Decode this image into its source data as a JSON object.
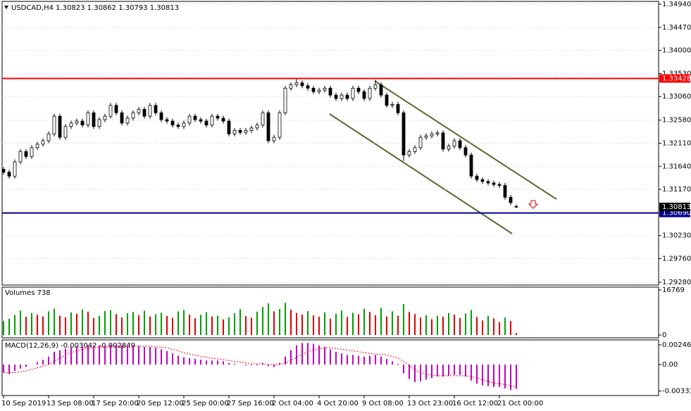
{
  "chart_data": [
    {
      "type": "candlestick",
      "title": "USDCAD,H4  1.30823 1.30862 1.30793 1.30813",
      "color": "#000000",
      "grid": true,
      "categories": [
        "10 Sep 2019",
        null,
        null,
        null,
        null,
        null,
        null,
        null,
        "13 Sep 08:00",
        null,
        null,
        null,
        null,
        null,
        null,
        null,
        "17 Sep 20:00",
        null,
        null,
        null,
        null,
        null,
        null,
        null,
        "20 Sep 12:00",
        null,
        null,
        null,
        null,
        null,
        null,
        null,
        "25 Sep 00:00",
        null,
        null,
        null,
        null,
        null,
        null,
        null,
        "27 Sep 16:00",
        null,
        null,
        null,
        null,
        null,
        null,
        null,
        "2 Oct 04:00",
        null,
        null,
        null,
        null,
        null,
        null,
        null,
        "4 Oct 20:00",
        null,
        null,
        null,
        null,
        null,
        null,
        null,
        "9 Oct 08:00",
        null,
        null,
        null,
        null,
        null,
        null,
        null,
        "13 Oct 23:00",
        null,
        null,
        null,
        null,
        null,
        null,
        null,
        "16 Oct 12:00",
        null,
        null,
        null,
        null,
        null,
        null,
        null,
        "21 Oct 00:00",
        null,
        null,
        null
      ],
      "open": [
        1.3158,
        1.3152,
        1.3144,
        1.3173,
        1.3194,
        1.3184,
        1.3202,
        1.3209,
        1.3216,
        1.323,
        1.3266,
        1.3223,
        1.3245,
        1.3252,
        1.3256,
        1.3248,
        1.3273,
        1.3245,
        1.3259,
        1.3266,
        1.3288,
        1.3273,
        1.3252,
        1.3262,
        1.3273,
        1.328,
        1.3266,
        1.3288,
        1.3273,
        1.3259,
        1.3256,
        1.3248,
        1.3245,
        1.3252,
        1.3266,
        1.3259,
        1.3256,
        1.3248,
        1.3266,
        1.3262,
        1.3256,
        1.323,
        1.3237,
        1.3233,
        1.3237,
        1.3242,
        1.3248,
        1.3273,
        1.3216,
        1.3223,
        1.3273,
        1.3323,
        1.333,
        1.3334,
        1.3328,
        1.3323,
        1.3316,
        1.3319,
        1.3323,
        1.3309,
        1.3302,
        1.3309,
        1.3302,
        1.3323,
        1.3316,
        1.3302,
        1.3323,
        1.333,
        1.3309,
        1.3288,
        1.329,
        1.3273,
        1.3187,
        1.3194,
        1.3202,
        1.3223,
        1.3226,
        1.323,
        1.3232,
        1.3199,
        1.3205,
        1.3216,
        1.3202,
        1.3187,
        1.3144,
        1.3137,
        1.3133,
        1.313,
        1.3127,
        1.3125,
        1.3101,
        1.30823
      ],
      "high": [
        1.3163,
        1.3157,
        1.3178,
        1.3199,
        1.3199,
        1.3207,
        1.3214,
        1.3221,
        1.3235,
        1.3271,
        1.3271,
        1.325,
        1.3257,
        1.3261,
        1.3261,
        1.3278,
        1.3278,
        1.3264,
        1.3271,
        1.3293,
        1.3293,
        1.3278,
        1.3267,
        1.3278,
        1.3285,
        1.3285,
        1.3293,
        1.3293,
        1.3278,
        1.3264,
        1.3261,
        1.3253,
        1.3257,
        1.3271,
        1.3271,
        1.3264,
        1.3261,
        1.3271,
        1.3271,
        1.3267,
        1.3261,
        1.3242,
        1.3242,
        1.3242,
        1.3247,
        1.3253,
        1.3278,
        1.3278,
        1.3228,
        1.3278,
        1.3328,
        1.3335,
        1.3343,
        1.3339,
        1.3333,
        1.3328,
        1.3324,
        1.3328,
        1.3328,
        1.3314,
        1.3314,
        1.3314,
        1.3328,
        1.3328,
        1.3321,
        1.3328,
        1.334,
        1.3335,
        1.3314,
        1.3295,
        1.3295,
        1.3278,
        1.3199,
        1.3207,
        1.3228,
        1.3231,
        1.3235,
        1.3237,
        1.3237,
        1.321,
        1.3221,
        1.3221,
        1.3207,
        1.3192,
        1.3149,
        1.3142,
        1.3138,
        1.3135,
        1.3132,
        1.313,
        1.3106,
        1.30862
      ],
      "low": [
        1.3147,
        1.3139,
        1.3139,
        1.3168,
        1.3179,
        1.3179,
        1.3197,
        1.3204,
        1.3211,
        1.3225,
        1.3218,
        1.3218,
        1.324,
        1.3247,
        1.3243,
        1.3243,
        1.324,
        1.324,
        1.3254,
        1.3261,
        1.3268,
        1.3247,
        1.3247,
        1.3257,
        1.3268,
        1.3261,
        1.3261,
        1.3268,
        1.3254,
        1.3251,
        1.3243,
        1.324,
        1.324,
        1.3247,
        1.3254,
        1.3251,
        1.3243,
        1.3243,
        1.3257,
        1.3251,
        1.3225,
        1.3225,
        1.3228,
        1.3228,
        1.3232,
        1.3237,
        1.3243,
        1.3211,
        1.3211,
        1.3218,
        1.3268,
        1.3318,
        1.3325,
        1.3323,
        1.3318,
        1.3311,
        1.3311,
        1.3314,
        1.3304,
        1.3297,
        1.3297,
        1.3297,
        1.3297,
        1.3311,
        1.3297,
        1.3297,
        1.3318,
        1.3304,
        1.3283,
        1.3283,
        1.3268,
        1.3175,
        1.3182,
        1.3189,
        1.3197,
        1.3218,
        1.3221,
        1.3225,
        1.3194,
        1.3194,
        1.32,
        1.3197,
        1.3182,
        1.3139,
        1.3132,
        1.3128,
        1.3125,
        1.3122,
        1.312,
        1.3096,
        1.3085,
        1.30793
      ],
      "close": [
        1.3152,
        1.3144,
        1.3173,
        1.3194,
        1.3184,
        1.3202,
        1.3209,
        1.3216,
        1.323,
        1.3266,
        1.3223,
        1.3245,
        1.3252,
        1.3256,
        1.3248,
        1.3273,
        1.3245,
        1.3259,
        1.3266,
        1.3288,
        1.3273,
        1.3252,
        1.3262,
        1.3273,
        1.328,
        1.3266,
        1.3288,
        1.3273,
        1.3259,
        1.3256,
        1.3248,
        1.3245,
        1.3252,
        1.3266,
        1.3259,
        1.3256,
        1.3248,
        1.3266,
        1.3262,
        1.3256,
        1.323,
        1.3237,
        1.3233,
        1.3237,
        1.3242,
        1.3248,
        1.3273,
        1.3216,
        1.3223,
        1.3273,
        1.3323,
        1.333,
        1.3334,
        1.3328,
        1.3323,
        1.3316,
        1.3319,
        1.3323,
        1.3309,
        1.3302,
        1.3309,
        1.3302,
        1.3323,
        1.3316,
        1.3302,
        1.3323,
        1.333,
        1.3309,
        1.3288,
        1.329,
        1.3273,
        1.3187,
        1.3194,
        1.3202,
        1.3223,
        1.3226,
        1.323,
        1.3232,
        1.3199,
        1.3205,
        1.3216,
        1.3202,
        1.3187,
        1.3144,
        1.3137,
        1.3133,
        1.313,
        1.3127,
        1.3125,
        1.3101,
        1.309,
        1.30813
      ],
      "ylim": [
        1.29223,
        1.34997
      ],
      "yticks": [
        {
          "value": 1.3494,
          "label": "1.34940"
        },
        {
          "value": 1.3447,
          "label": "1.34470"
        },
        {
          "value": 1.34,
          "label": "1.34000"
        },
        {
          "value": 1.3353,
          "label": "1.33530"
        },
        {
          "value": 1.3306,
          "label": "1.33060"
        },
        {
          "value": 1.3258,
          "label": "1.32580"
        },
        {
          "value": 1.3211,
          "label": "1.32110"
        },
        {
          "value": 1.3164,
          "label": "1.31640"
        },
        {
          "value": 1.3117,
          "label": "1.31170"
        },
        {
          "value": 1.3023,
          "label": "1.30230"
        },
        {
          "value": 1.2976,
          "label": "1.29760"
        },
        {
          "value": 1.2928,
          "label": "1.29280"
        }
      ],
      "levels": [
        {
          "value": 1.33428,
          "label": "1.33428",
          "color": "#ff0000"
        },
        {
          "value": 1.3069,
          "label": "1.30690",
          "color": "#00008b"
        }
      ],
      "last_price": {
        "value": 1.30813,
        "label": "1.30813"
      }
    },
    {
      "type": "volume",
      "title": "Volumes 738",
      "color": "#00a000",
      "down_color": "#e00000",
      "values": [
        5200,
        6100,
        7400,
        9100,
        6800,
        8200,
        7600,
        6900,
        8800,
        9800,
        7200,
        6600,
        8400,
        7900,
        9500,
        8700,
        6300,
        7100,
        8900,
        9200,
        7800,
        6500,
        8100,
        8600,
        7400,
        9000,
        6900,
        7700,
        8300,
        7100,
        6400,
        8800,
        9300,
        7600,
        6200,
        7500,
        8500,
        6900,
        7200,
        5800,
        6600,
        8100,
        9600,
        7000,
        6400,
        8700,
        10400,
        11800,
        8800,
        9700,
        12000,
        9400,
        8200,
        7600,
        8900,
        7300,
        6800,
        8400,
        6100,
        7900,
        9100,
        6700,
        8300,
        7700,
        9800,
        8600,
        7400,
        10100,
        6900,
        8800,
        7200,
        11500,
        8600,
        7800,
        6500,
        7400,
        5900,
        7100,
        6800,
        8200,
        7600,
        6300,
        8000,
        9300,
        6700,
        5400,
        7100,
        6200,
        4800,
        6500,
        5200,
        738
      ],
      "ylim": [
        0,
        16769
      ],
      "yticks": [
        0,
        16769
      ]
    },
    {
      "type": "macd",
      "title": "MACD(12,26,9) -0.003042 -0.002849",
      "series": [
        {
          "color": "#c000c0",
          "values": [
            -0.001,
            -0.0012,
            -0.0008,
            -0.0005,
            -0.0003,
            0.0,
            0.0003,
            0.0006,
            0.001,
            0.0016,
            0.0018,
            0.002,
            0.0022,
            0.0023,
            0.0023,
            0.0024,
            0.0024,
            0.0024,
            0.0024,
            0.0025,
            0.0025,
            0.0024,
            0.0023,
            0.0023,
            0.0023,
            0.0022,
            0.0022,
            0.0021,
            0.0019,
            0.0017,
            0.0014,
            0.0011,
            0.0009,
            0.0008,
            0.0007,
            0.0006,
            0.0005,
            0.0005,
            0.0005,
            0.0004,
            0.0002,
            0.0001,
            0.0,
            -0.0001,
            -0.0001,
            -0.0001,
            0.0002,
            -0.0002,
            -0.0003,
            0.0002,
            0.001,
            0.0018,
            0.0024,
            0.0027,
            0.0027,
            0.0026,
            0.0024,
            0.0022,
            0.0019,
            0.0016,
            0.0014,
            0.0012,
            0.0012,
            0.0011,
            0.001,
            0.0011,
            0.0012,
            0.001,
            0.0007,
            0.0004,
            0.0001,
            -0.0011,
            -0.0018,
            -0.0022,
            -0.0021,
            -0.0019,
            -0.0017,
            -0.0015,
            -0.0015,
            -0.0014,
            -0.0013,
            -0.0013,
            -0.0015,
            -0.002,
            -0.0024,
            -0.0026,
            -0.0027,
            -0.0028,
            -0.0028,
            -0.003,
            -0.0032,
            -0.003042
          ]
        },
        {
          "color": "#ff0000",
          "style": "dotted",
          "values": [
            -0.001,
            -0.001,
            -0.001,
            -0.0009,
            -0.0008,
            -0.0006,
            -0.0004,
            -0.0002,
            0.0,
            0.0004,
            0.0008,
            0.0012,
            0.0015,
            0.0017,
            0.0019,
            0.002,
            0.0021,
            0.0022,
            0.0022,
            0.0023,
            0.0023,
            0.0023,
            0.0023,
            0.0023,
            0.0023,
            0.0023,
            0.0023,
            0.0022,
            0.0022,
            0.0021,
            0.0019,
            0.0017,
            0.0015,
            0.0013,
            0.0012,
            0.001,
            0.0009,
            0.0008,
            0.0007,
            0.0006,
            0.0005,
            0.0004,
            0.0003,
            0.0002,
            0.0001,
            0.0001,
            0.0001,
            0.0,
            0.0,
            0.0,
            0.0002,
            0.0005,
            0.0009,
            0.0013,
            0.0016,
            0.0018,
            0.002,
            0.0021,
            0.0021,
            0.002,
            0.0019,
            0.0018,
            0.0017,
            0.0016,
            0.0015,
            0.0014,
            0.0013,
            0.0013,
            0.0012,
            0.001,
            0.0008,
            0.0004,
            -0.0001,
            -0.0006,
            -0.001,
            -0.0012,
            -0.0013,
            -0.0014,
            -0.0014,
            -0.0014,
            -0.0014,
            -0.0014,
            -0.0014,
            -0.0015,
            -0.0017,
            -0.0019,
            -0.0021,
            -0.0023,
            -0.0024,
            -0.0025,
            -0.0027,
            -0.002849
          ]
        }
      ],
      "ylim": [
        -0.003875,
        0.003082
      ],
      "yticks": [
        0.002466,
        {
          "value": 0,
          "label": "0.00"
        },
        -0.003315
      ]
    }
  ]
}
